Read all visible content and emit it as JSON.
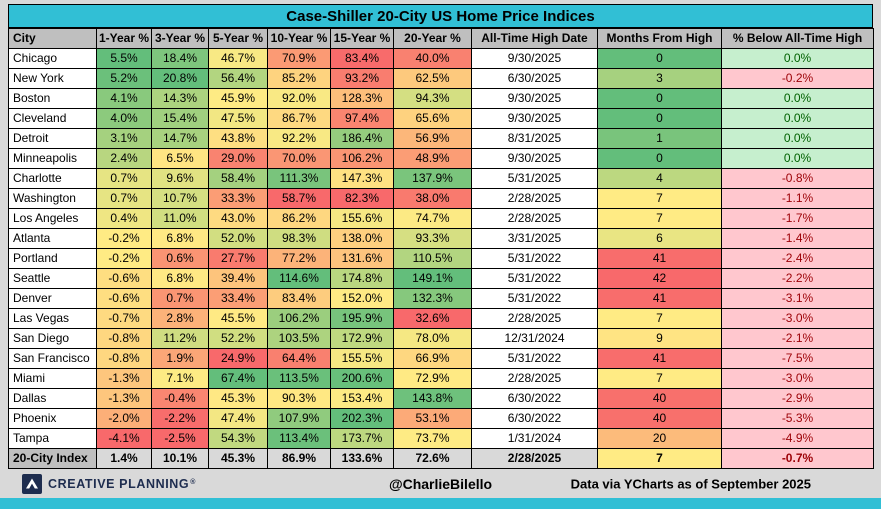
{
  "chart_data": {
    "type": "table",
    "title": "Case-Shiller 20-City US Home Price Indices",
    "columns": [
      "City",
      "1-Year %",
      "3-Year %",
      "5-Year %",
      "10-Year %",
      "15-Year %",
      "20-Year %",
      "All-Time High Date",
      "Months From High",
      "% Below All-Time High"
    ],
    "rows": [
      [
        "Chicago",
        5.5,
        18.4,
        46.7,
        70.9,
        83.4,
        40.0,
        "9/30/2025",
        0,
        0.0
      ],
      [
        "New York",
        5.2,
        20.8,
        56.4,
        85.2,
        93.2,
        62.5,
        "6/30/2025",
        3,
        -0.2
      ],
      [
        "Boston",
        4.1,
        14.3,
        45.9,
        92.0,
        128.3,
        94.3,
        "9/30/2025",
        0,
        0.0
      ],
      [
        "Cleveland",
        4.0,
        15.4,
        47.5,
        86.7,
        97.4,
        65.6,
        "9/30/2025",
        0,
        0.0
      ],
      [
        "Detroit",
        3.1,
        14.7,
        43.8,
        92.2,
        186.4,
        56.9,
        "8/31/2025",
        1,
        0.0
      ],
      [
        "Minneapolis",
        2.4,
        6.5,
        29.0,
        70.0,
        106.2,
        48.9,
        "9/30/2025",
        0,
        0.0
      ],
      [
        "Charlotte",
        0.7,
        9.6,
        58.4,
        111.3,
        147.3,
        137.9,
        "5/31/2025",
        4,
        -0.8
      ],
      [
        "Washington",
        0.7,
        10.7,
        33.3,
        58.7,
        82.3,
        38.0,
        "2/28/2025",
        7,
        -1.1
      ],
      [
        "Los Angeles",
        0.4,
        11.0,
        43.0,
        86.2,
        155.6,
        74.7,
        "2/28/2025",
        7,
        -1.7
      ],
      [
        "Atlanta",
        -0.2,
        6.8,
        52.0,
        98.3,
        138.0,
        93.3,
        "3/31/2025",
        6,
        -1.4
      ],
      [
        "Portland",
        -0.2,
        0.6,
        27.7,
        77.2,
        131.6,
        110.5,
        "5/31/2022",
        41,
        -2.4
      ],
      [
        "Seattle",
        -0.6,
        6.8,
        39.4,
        114.6,
        174.8,
        149.1,
        "5/31/2022",
        42,
        -2.2
      ],
      [
        "Denver",
        -0.6,
        0.7,
        33.4,
        83.4,
        152.0,
        132.3,
        "5/31/2022",
        41,
        -3.1
      ],
      [
        "Las Vegas",
        -0.7,
        2.8,
        45.5,
        106.2,
        195.9,
        32.6,
        "2/28/2025",
        7,
        -3.0
      ],
      [
        "San Diego",
        -0.8,
        11.2,
        52.2,
        103.5,
        172.9,
        78.0,
        "12/31/2024",
        9,
        -2.1
      ],
      [
        "San Francisco",
        -0.8,
        1.9,
        24.9,
        64.4,
        155.5,
        66.9,
        "5/31/2022",
        41,
        -7.5
      ],
      [
        "Miami",
        -1.3,
        7.1,
        67.4,
        113.5,
        200.6,
        72.9,
        "2/28/2025",
        7,
        -3.0
      ],
      [
        "Dallas",
        -1.3,
        -0.4,
        45.3,
        90.3,
        153.4,
        143.8,
        "6/30/2022",
        40,
        -2.9
      ],
      [
        "Phoenix",
        -2.0,
        -2.2,
        47.4,
        107.9,
        202.3,
        53.1,
        "6/30/2022",
        40,
        -5.3
      ],
      [
        "Tampa",
        -4.1,
        -2.5,
        54.3,
        113.4,
        173.7,
        73.7,
        "1/31/2024",
        20,
        -4.9
      ]
    ],
    "summary_row": [
      "20-City Index",
      1.4,
      10.1,
      45.3,
      86.9,
      133.6,
      72.6,
      "2/28/2025",
      7,
      -0.7
    ],
    "legend_position": "none",
    "grid": true
  },
  "footer": {
    "logo_text": "CREATIVE PLANNING",
    "logo_reg": "®",
    "handle": "@CharlieBilello",
    "source": "Data via YCharts as of September 2025"
  },
  "colors": {
    "accent_cyan": "#31BFD5",
    "header_gray": "#BFBFBF",
    "page_gray": "#D9D9D9",
    "summary_gray": "#D9D9D9",
    "heat_min": "#F8696B",
    "heat_mid": "#FFEB84",
    "heat_max": "#63BE7B",
    "good_bg": "#C6EFCE",
    "good_text": "#006100",
    "bad_bg": "#FFC7CE",
    "bad_text": "#9C0006",
    "logo_navy": "#1E2D4F"
  }
}
